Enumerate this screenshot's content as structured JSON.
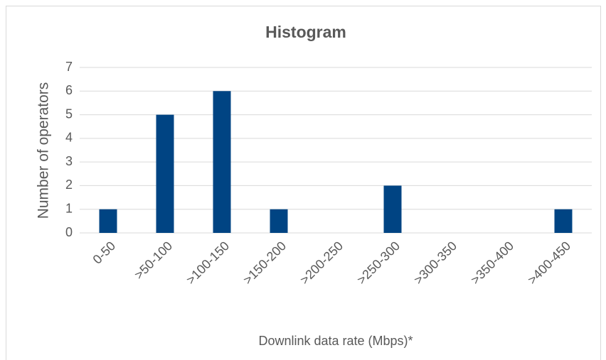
{
  "chart_data": {
    "type": "bar",
    "title": "Histogram",
    "x_label": "Downlink data rate (Mbps)*",
    "y_label": "Number of operators",
    "categories": [
      "0-50",
      ">50-100",
      ">100-150",
      ">150-200",
      ">200-250",
      ">250-300",
      ">300-350",
      ">350-400",
      ">400-450"
    ],
    "values": [
      1,
      5,
      6,
      1,
      0,
      2,
      0,
      0,
      1
    ],
    "color": "#004483",
    "ylim": [
      0,
      7
    ],
    "yticks": [
      0,
      1,
      2,
      3,
      4,
      5,
      6,
      7
    ],
    "grid": true
  }
}
